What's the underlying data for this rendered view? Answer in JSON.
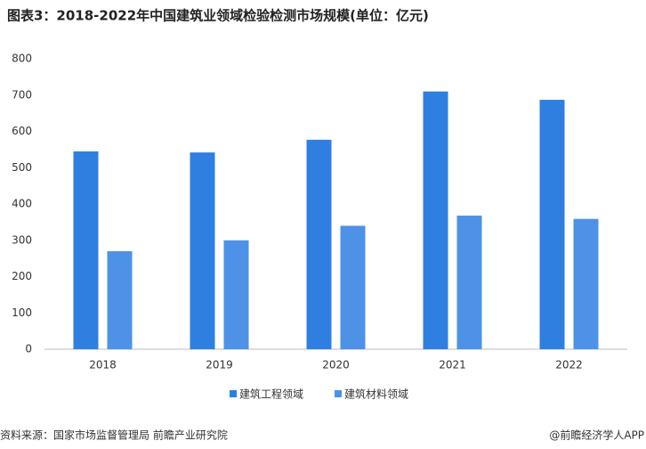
{
  "chart_data": {
    "type": "bar",
    "title": "图表3：2018-2022年中国建筑业领域检验检测市场规模(单位：亿元)",
    "categories": [
      "2018",
      "2019",
      "2020",
      "2021",
      "2022"
    ],
    "series": [
      {
        "name": "建筑工程领域",
        "color": "#2f7fe0",
        "values": [
          545,
          542,
          577,
          710,
          687
        ]
      },
      {
        "name": "建筑材料领域",
        "color": "#4d92e6",
        "values": [
          270,
          300,
          340,
          368,
          359
        ]
      }
    ],
    "ylim": [
      0,
      800
    ],
    "yticks": [
      0,
      100,
      200,
      300,
      400,
      500,
      600,
      700,
      800
    ],
    "grid": false,
    "legend": "bottom",
    "source": "资料来源：国家市场监督管理局 前瞻产业研究院",
    "credit": "@前瞻经济学人APP"
  }
}
